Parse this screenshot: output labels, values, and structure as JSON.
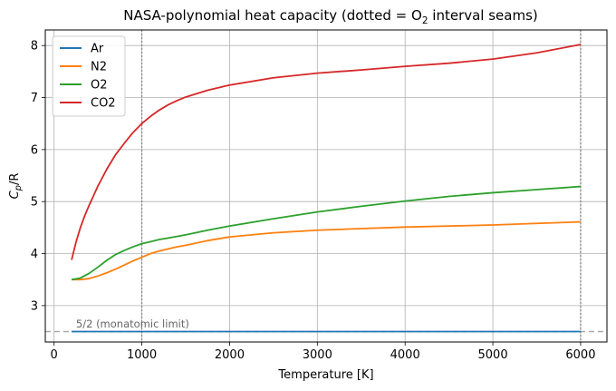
{
  "chart_data": {
    "type": "line",
    "title": {
      "prefix": "NASA-polynomial heat capacity (dotted = O",
      "subscript": "2",
      "suffix": " interval seams)"
    },
    "xlabel": "Temperature [K]",
    "ylabel": {
      "base": "C",
      "sub": "p",
      "suffix": "/R"
    },
    "xlim": [
      -100,
      6300
    ],
    "ylim": [
      2.3,
      8.3
    ],
    "xticks": [
      0,
      1000,
      2000,
      3000,
      4000,
      5000,
      6000
    ],
    "xtick_labels": [
      "0",
      "1000",
      "2000",
      "3000",
      "4000",
      "5000",
      "6000"
    ],
    "yticks": [
      3,
      4,
      5,
      6,
      7,
      8
    ],
    "ytick_labels": [
      "3",
      "4",
      "5",
      "6",
      "7",
      "8"
    ],
    "grid": true,
    "legend_position": "top-left",
    "series": [
      {
        "name": "Ar",
        "color": "#1f77b4",
        "x": [
          200,
          6000
        ],
        "y": [
          2.5,
          2.5
        ]
      },
      {
        "name": "N2",
        "color": "#ff7f0e",
        "x": [
          200,
          300,
          400,
          500,
          600,
          700,
          800,
          900,
          1000,
          1100,
          1200,
          1300,
          1400,
          1500,
          1750,
          2000,
          2500,
          3000,
          3500,
          4000,
          4500,
          5000,
          5500,
          6000
        ],
        "y": [
          3.5,
          3.5,
          3.52,
          3.57,
          3.63,
          3.7,
          3.78,
          3.86,
          3.93,
          4.0,
          4.05,
          4.09,
          4.13,
          4.16,
          4.25,
          4.32,
          4.4,
          4.45,
          4.48,
          4.51,
          4.53,
          4.55,
          4.58,
          4.61
        ]
      },
      {
        "name": "O2",
        "color": "#2ca02c",
        "x": [
          200,
          300,
          400,
          500,
          600,
          700,
          800,
          900,
          1000,
          1100,
          1200,
          1300,
          1400,
          1500,
          1750,
          2000,
          2500,
          3000,
          3500,
          4000,
          4500,
          5000,
          5500,
          6000
        ],
        "y": [
          3.5,
          3.53,
          3.62,
          3.74,
          3.87,
          3.98,
          4.06,
          4.13,
          4.19,
          4.23,
          4.27,
          4.3,
          4.33,
          4.36,
          4.45,
          4.53,
          4.67,
          4.8,
          4.91,
          5.01,
          5.1,
          5.17,
          5.23,
          5.29
        ]
      },
      {
        "name": "CO2",
        "color": "#d62728",
        "x": [
          200,
          250,
          300,
          350,
          400,
          500,
          600,
          700,
          800,
          900,
          1000,
          1100,
          1200,
          1300,
          1400,
          1500,
          1750,
          2000,
          2500,
          3000,
          3500,
          4000,
          4500,
          5000,
          5500,
          6000
        ],
        "y": [
          3.88,
          4.22,
          4.5,
          4.73,
          4.93,
          5.3,
          5.62,
          5.9,
          6.12,
          6.33,
          6.5,
          6.64,
          6.76,
          6.86,
          6.94,
          7.01,
          7.14,
          7.24,
          7.38,
          7.47,
          7.53,
          7.6,
          7.66,
          7.74,
          7.86,
          8.02
        ]
      }
    ],
    "reference_line": {
      "y": 2.5,
      "color": "#aaaaaa"
    },
    "seams": {
      "x": [
        1000,
        6000
      ],
      "color": "#888888"
    },
    "annotation": {
      "text": "5/2 (monatomic limit)",
      "x": 250,
      "y": 2.53
    }
  }
}
